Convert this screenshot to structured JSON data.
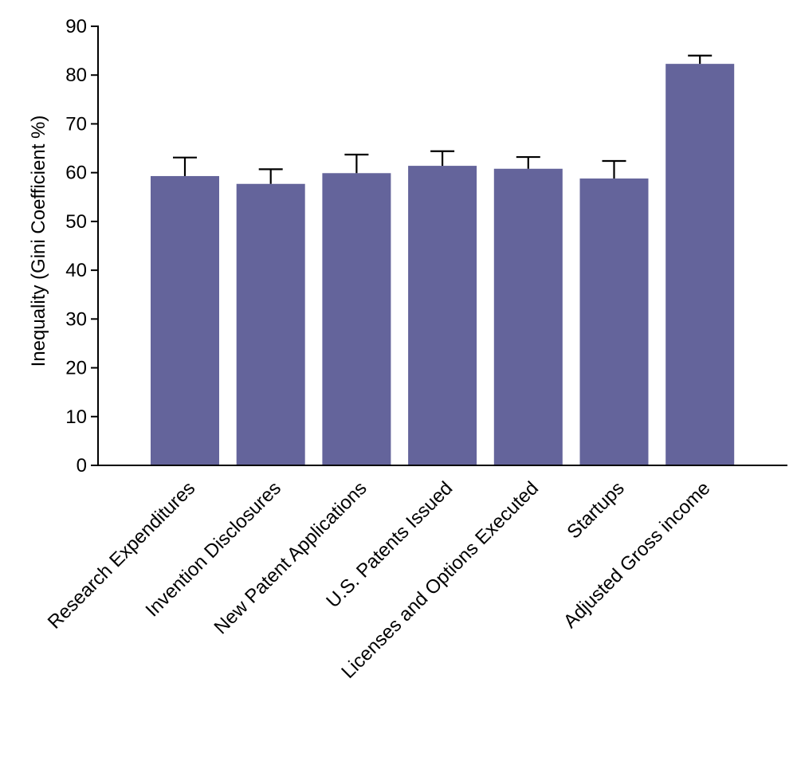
{
  "chart_data": {
    "type": "bar",
    "title": "",
    "xlabel": "",
    "ylabel": "Inequality  (Gini Coefficient %)",
    "ylim": [
      0,
      90
    ],
    "yticks": [
      0,
      10,
      20,
      30,
      40,
      50,
      60,
      70,
      80,
      90
    ],
    "grid": false,
    "categories": [
      "Research Expenditures",
      "Invention Disclosures",
      "New Patent Applications",
      "U.S. Patents Issued",
      "Licenses and Options Executed",
      "Startups",
      "Adjusted  Gross income"
    ],
    "values": [
      59.3,
      57.7,
      59.9,
      61.4,
      60.8,
      58.8,
      82.3
    ],
    "errors": [
      3.8,
      3.0,
      3.8,
      3.0,
      2.4,
      3.6,
      1.7
    ],
    "colors": {
      "bar": "#64649b",
      "axis": "#000000",
      "error": "#000000"
    }
  }
}
